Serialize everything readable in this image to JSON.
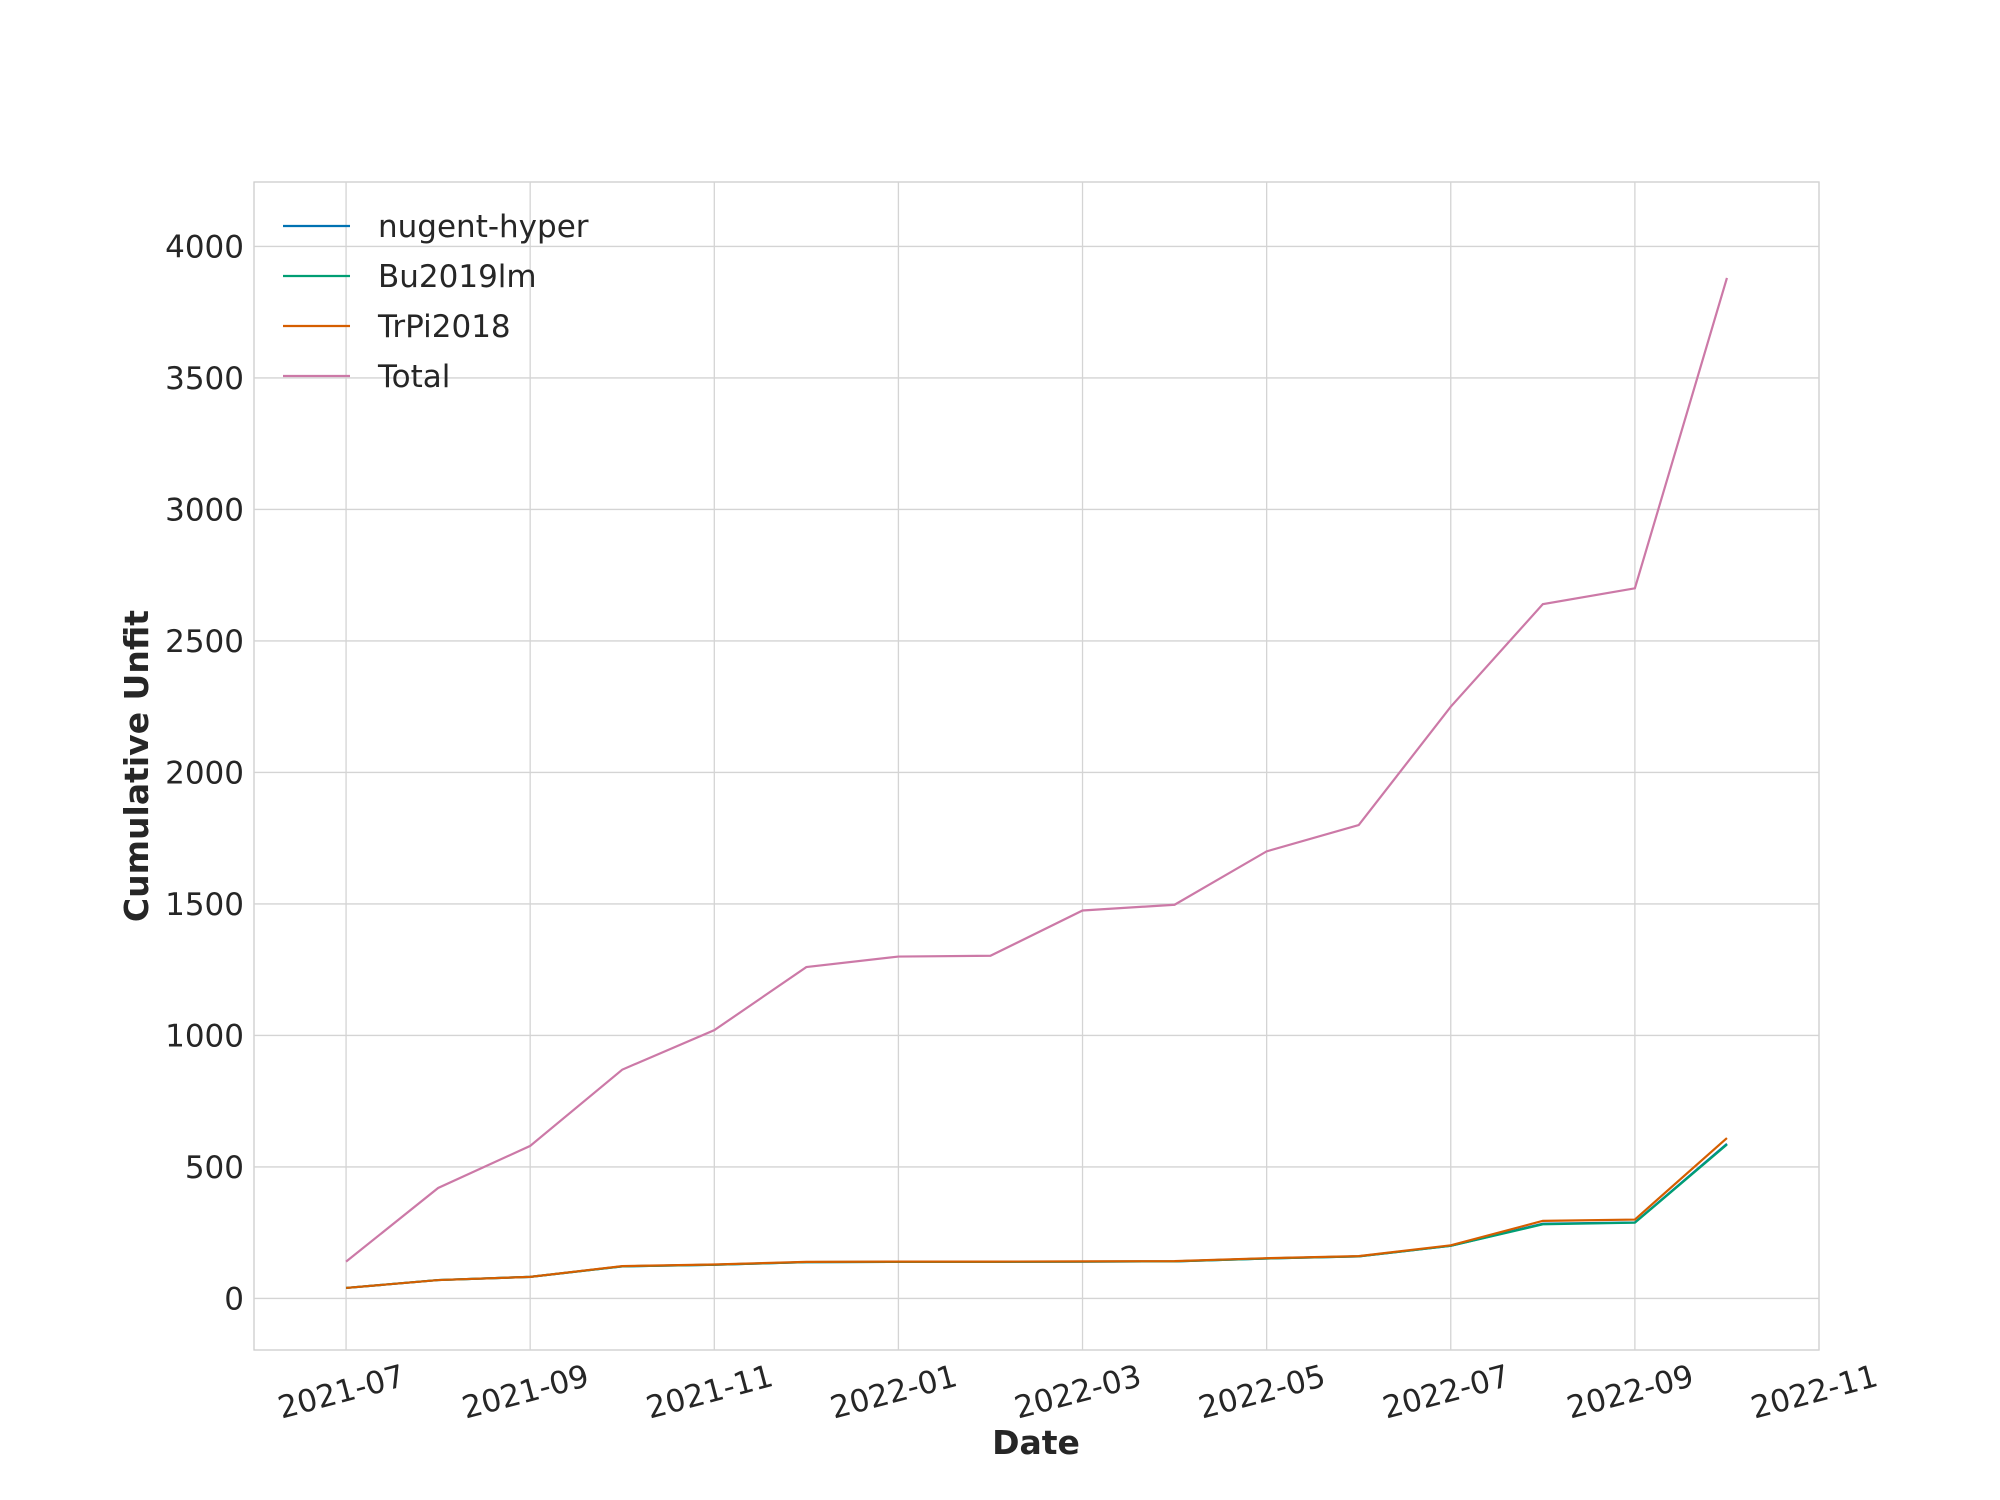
{
  "chart_data": {
    "type": "line",
    "x_label": "Date",
    "y_label": "Cumulative Unfit",
    "x": [
      "2021-07",
      "2021-08",
      "2021-09",
      "2021-10",
      "2021-11",
      "2021-12",
      "2022-01",
      "2022-02",
      "2022-03",
      "2022-04",
      "2022-05",
      "2022-06",
      "2022-07",
      "2022-08",
      "2022-09",
      "2022-10"
    ],
    "series": [
      {
        "name": "nugent-hyper",
        "color": "#0072b2",
        "values": [
          40,
          70,
          82,
          122,
          128,
          138,
          139,
          139,
          140,
          141,
          152,
          160,
          200,
          284,
          289,
          588
        ]
      },
      {
        "name": "Bu2019lm",
        "color": "#009e73",
        "values": [
          40,
          70,
          82,
          122,
          128,
          138,
          139,
          139,
          140,
          141,
          152,
          160,
          200,
          282,
          288,
          585
        ]
      },
      {
        "name": "TrPi2018",
        "color": "#d55e00",
        "values": [
          40,
          70,
          82,
          123,
          129,
          139,
          140,
          140,
          141,
          142,
          153,
          161,
          202,
          295,
          300,
          610
        ]
      },
      {
        "name": "Total",
        "color": "#cc79a7",
        "values": [
          140,
          420,
          580,
          870,
          1020,
          1260,
          1300,
          1303,
          1475,
          1497,
          1700,
          1800,
          2250,
          2640,
          2700,
          3880
        ]
      }
    ],
    "xlim": [
      "2021-06",
      "2022-11"
    ],
    "xticks": [
      "2021-07",
      "2021-09",
      "2021-11",
      "2022-01",
      "2022-03",
      "2022-05",
      "2022-07",
      "2022-09",
      "2022-11"
    ],
    "ylim": [
      -196,
      4245
    ],
    "yticks": [
      0,
      500,
      1000,
      1500,
      2000,
      2500,
      3000,
      3500,
      4000
    ],
    "grid": true,
    "legend": "upper left"
  }
}
